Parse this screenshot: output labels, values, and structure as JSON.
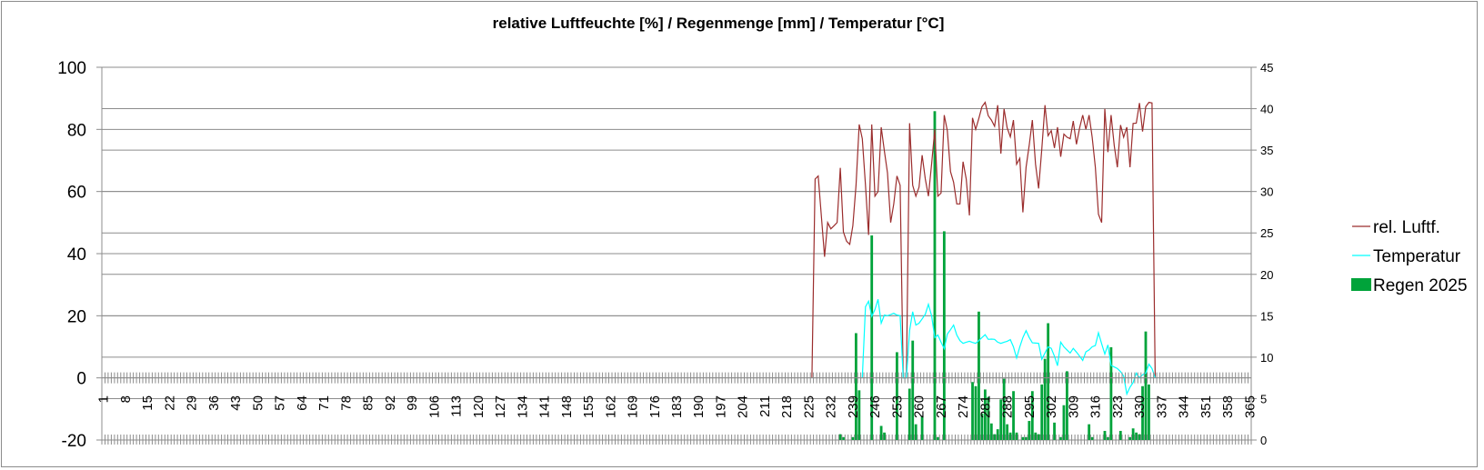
{
  "chart_data": {
    "type": "bar+line",
    "title": "relative Luftfeuchte [%] / Regenmenge [mm] / Temperatur [°C]",
    "x_range": [
      1,
      365
    ],
    "x_tick_step": 7,
    "left_axis": {
      "min": -20,
      "max": 100,
      "step": 20,
      "ticks": [
        "100",
        "80",
        "60",
        "40",
        "20",
        "0",
        "-20"
      ]
    },
    "right_axis": {
      "min": 0,
      "max": 45,
      "step": 5,
      "ticks": [
        "45",
        "40",
        "35",
        "30",
        "25",
        "20",
        "15",
        "10",
        "5",
        "0"
      ]
    },
    "grid": true,
    "legend_position": "right",
    "colors": {
      "humidity": "#9b2d2d",
      "temperature": "#00ffff",
      "rain": "#00a33a",
      "grid": "#8c8c8c"
    },
    "series": [
      {
        "name": "rel. Luftf.",
        "type": "line",
        "axis": "left",
        "start_day": 226,
        "values": [
          0,
          64,
          65,
          52,
          39,
          50,
          48,
          49,
          50,
          67.6,
          47,
          44,
          43,
          49,
          62,
          81.6,
          77,
          62,
          46,
          81.6,
          58.5,
          60,
          80.7,
          73,
          66,
          50,
          56,
          65,
          62,
          0,
          0,
          82,
          62,
          58.5,
          61.4,
          71.7,
          64,
          58.5,
          68.8,
          80,
          58.5,
          59.5,
          84.6,
          79.6,
          66.4,
          63,
          56,
          56,
          69.6,
          64,
          52.3,
          83.7,
          80,
          83.5,
          87.3,
          88.7,
          84.4,
          83,
          81,
          87.8,
          72.2,
          86.6,
          80.5,
          77.6,
          83,
          68.8,
          70.7,
          53.3,
          67.8,
          75,
          83,
          68.8,
          61,
          73.7,
          87.8,
          78,
          79.6,
          74,
          80.7,
          71.2,
          78.5,
          77.5,
          77,
          82.7,
          75.2,
          80.5,
          84.6,
          80,
          84.6,
          77.5,
          67.8,
          52.7,
          50,
          86.6,
          72.7,
          84.6,
          74.7,
          67.8,
          81.4,
          77.5,
          80.7,
          67.8,
          81.9,
          82,
          88.5,
          79.3,
          87.3,
          88.7,
          88.5,
          0
        ]
      },
      {
        "name": "Temperatur",
        "type": "line",
        "axis": "left",
        "start_day": 242,
        "values": [
          0,
          22.9,
          24.7,
          19.8,
          22,
          25.3,
          17.6,
          20.2,
          20,
          20.4,
          20.8,
          20.2,
          20,
          0,
          0,
          15.2,
          21.3,
          17,
          17.6,
          19,
          20.5,
          23.7,
          20,
          13,
          13.8,
          11.5,
          9.4,
          14.1,
          15.5,
          17,
          13.8,
          12,
          11.1,
          11.5,
          11.8,
          11.4,
          11.1,
          12,
          13,
          13.9,
          12.4,
          12.5,
          12.4,
          11.5,
          11.1,
          11.5,
          11.8,
          12.3,
          10,
          6.4,
          10,
          13,
          15.2,
          13,
          11.3,
          11.2,
          11.1,
          6,
          8,
          10,
          9.5,
          7,
          3.9,
          11.5,
          10,
          9,
          8,
          9.5,
          8.3,
          7,
          5.6,
          8.4,
          9,
          10,
          10.4,
          14.5,
          11,
          7.7,
          10.6,
          4,
          3.5,
          3,
          2,
          0.6,
          -5.2,
          -3,
          -1.5,
          1.5,
          0,
          1,
          1.5,
          4.4,
          3,
          0
        ]
      },
      {
        "name": "Regen 2025",
        "type": "bar",
        "axis": "right",
        "points": [
          [
            235,
            0.7
          ],
          [
            236,
            0.35
          ],
          [
            239,
            0.35
          ],
          [
            240,
            12.9
          ],
          [
            241,
            6
          ],
          [
            245,
            24.7
          ],
          [
            248,
            1.7
          ],
          [
            249,
            0.9
          ],
          [
            253,
            10.6
          ],
          [
            257,
            6.2
          ],
          [
            258,
            12
          ],
          [
            259,
            1.9
          ],
          [
            261,
            2.9
          ],
          [
            265,
            39.7
          ],
          [
            266,
            0.35
          ],
          [
            268,
            25.2
          ],
          [
            277,
            7
          ],
          [
            278,
            6.5
          ],
          [
            279,
            15.5
          ],
          [
            280,
            3.2
          ],
          [
            281,
            6.1
          ],
          [
            282,
            5.2
          ],
          [
            283,
            2
          ],
          [
            284,
            0.7
          ],
          [
            285,
            1.3
          ],
          [
            286,
            4.9
          ],
          [
            287,
            7.4
          ],
          [
            288,
            1.9
          ],
          [
            289,
            0.9
          ],
          [
            290,
            5.9
          ],
          [
            291,
            0.9
          ],
          [
            293,
            0.35
          ],
          [
            294,
            0.35
          ],
          [
            295,
            2.3
          ],
          [
            296,
            5.9
          ],
          [
            297,
            0.9
          ],
          [
            298,
            0.7
          ],
          [
            299,
            6.7
          ],
          [
            300,
            9.8
          ],
          [
            301,
            14.1
          ],
          [
            303,
            2.1
          ],
          [
            305,
            0.35
          ],
          [
            306,
            4.2
          ],
          [
            307,
            8.3
          ],
          [
            314,
            1.9
          ],
          [
            315,
            0.35
          ],
          [
            319,
            1.1
          ],
          [
            320,
            0.35
          ],
          [
            321,
            11.2
          ],
          [
            324,
            1.1
          ],
          [
            327,
            0.35
          ],
          [
            328,
            1.4
          ],
          [
            329,
            0.9
          ],
          [
            330,
            0.7
          ],
          [
            331,
            6.5
          ],
          [
            332,
            13.1
          ],
          [
            333,
            6.7
          ]
        ]
      }
    ]
  }
}
